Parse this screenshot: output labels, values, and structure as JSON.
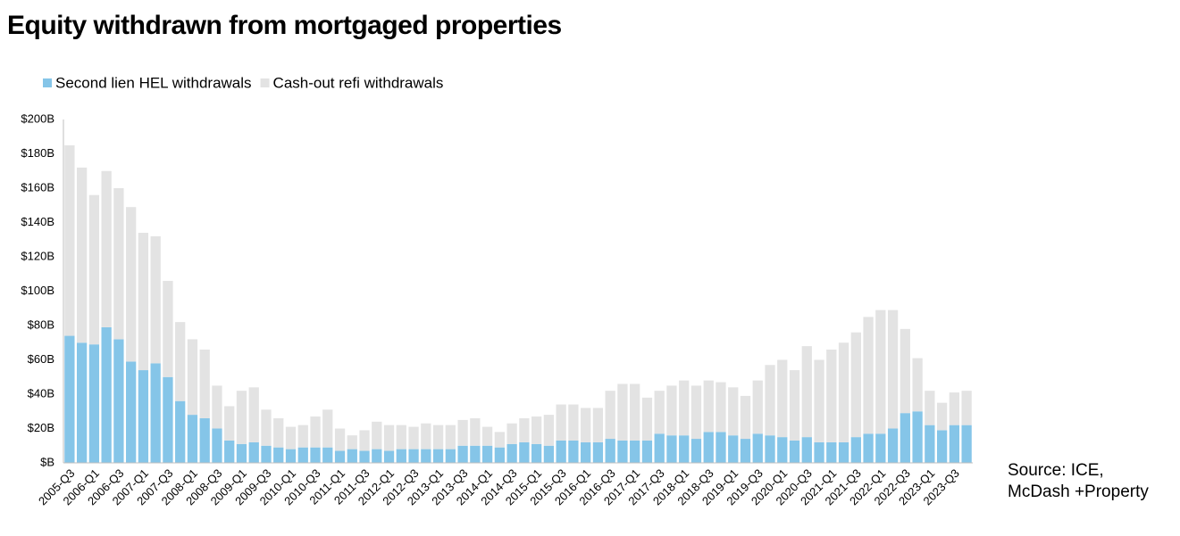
{
  "chart_data": {
    "type": "stacked_bar",
    "title": "Equity withdrawn from mortgaged properties",
    "source": [
      "Source: ICE,",
      "McDash +Property"
    ],
    "legend": "top-left",
    "categories": [
      "2005-Q3",
      null,
      "2006-Q1",
      null,
      "2006-Q3",
      null,
      "2007-Q1",
      null,
      "2007-Q3",
      null,
      "2008-Q1",
      null,
      "2008-Q3",
      null,
      "2009-Q1",
      null,
      "2009-Q3",
      null,
      "2010-Q1",
      null,
      "2010-Q3",
      null,
      "2011-Q1",
      null,
      "2011-Q3",
      null,
      "2012-Q1",
      null,
      "2012-Q3",
      null,
      "2013-Q1",
      null,
      "2013-Q3",
      null,
      "2014-Q1",
      null,
      "2014-Q3",
      null,
      "2015-Q1",
      null,
      "2015-Q3",
      null,
      "2016-Q1",
      null,
      "2016-Q3",
      null,
      "2017-Q1",
      null,
      "2017-Q3",
      null,
      "2018-Q1",
      null,
      "2018-Q3",
      null,
      "2019-Q1",
      null,
      "2019-Q3",
      null,
      "2020-Q1",
      null,
      "2020-Q3",
      null,
      "2021-Q1",
      null,
      "2021-Q3",
      null,
      "2022-Q1",
      null,
      "2022-Q3",
      null,
      "2023-Q1",
      null,
      "2023-Q3",
      null
    ],
    "series": [
      {
        "name": "Second lien HEL withdrawals",
        "color": "#85c5e8",
        "values": [
          74,
          70,
          69,
          79,
          72,
          59,
          54,
          58,
          50,
          36,
          28,
          26,
          20,
          13,
          11,
          12,
          10,
          9,
          8,
          9,
          9,
          9,
          7,
          8,
          7,
          8,
          7,
          8,
          8,
          8,
          8,
          8,
          10,
          10,
          10,
          9,
          11,
          12,
          11,
          10,
          13,
          13,
          12,
          12,
          14,
          13,
          13,
          13,
          17,
          16,
          16,
          14,
          18,
          18,
          16,
          14,
          17,
          16,
          15,
          13,
          15,
          12,
          12,
          12,
          15,
          17,
          17,
          20,
          29,
          30,
          22,
          19,
          22,
          22
        ]
      },
      {
        "name": "Cash-out refi withdrawals",
        "color": "#e3e3e3",
        "values": [
          111,
          102,
          87,
          91,
          88,
          90,
          80,
          74,
          56,
          46,
          44,
          40,
          25,
          20,
          31,
          32,
          21,
          17,
          13,
          13,
          18,
          22,
          13,
          8,
          12,
          16,
          15,
          14,
          13,
          15,
          14,
          14,
          15,
          16,
          11,
          9,
          12,
          14,
          16,
          18,
          21,
          21,
          20,
          20,
          28,
          33,
          33,
          25,
          25,
          29,
          32,
          31,
          30,
          29,
          28,
          25,
          31,
          41,
          45,
          41,
          53,
          48,
          54,
          58,
          61,
          68,
          72,
          69,
          49,
          31,
          20,
          16,
          19,
          20
        ]
      }
    ],
    "ylim": [
      0,
      200
    ],
    "yticks": [
      {
        "value": 0,
        "label": "$B"
      },
      {
        "value": 20,
        "label": "$20B"
      },
      {
        "value": 40,
        "label": "$40B"
      },
      {
        "value": 60,
        "label": "$60B"
      },
      {
        "value": 80,
        "label": "$80B"
      },
      {
        "value": 100,
        "label": "$100B"
      },
      {
        "value": 120,
        "label": "$120B"
      },
      {
        "value": 140,
        "label": "$140B"
      },
      {
        "value": 160,
        "label": "$160B"
      },
      {
        "value": 180,
        "label": "$180B"
      },
      {
        "value": 200,
        "label": "$200B"
      }
    ],
    "grid": false
  }
}
